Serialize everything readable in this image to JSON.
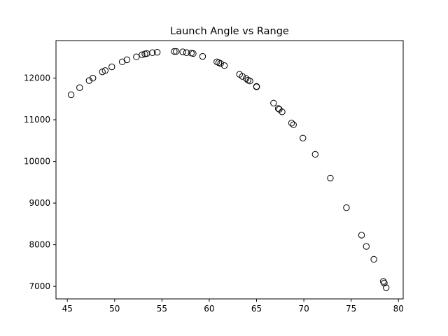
{
  "chart_data": {
    "type": "scatter",
    "title": "Launch Angle vs Range",
    "xlabel": "",
    "ylabel": "",
    "xlim": [
      43.8,
      80.5
    ],
    "ylim": [
      6700,
      12900
    ],
    "x_ticks": [
      45,
      50,
      55,
      60,
      65,
      70,
      75,
      80
    ],
    "y_ticks": [
      7000,
      8000,
      9000,
      10000,
      11000,
      12000
    ],
    "grid": false,
    "legend": "none",
    "marker": "open-circle",
    "marker_color": "#000000",
    "series": [
      {
        "points": [
          [
            45.4,
            11600
          ],
          [
            46.3,
            11770
          ],
          [
            47.3,
            11940
          ],
          [
            47.7,
            12000
          ],
          [
            48.7,
            12150
          ],
          [
            49.0,
            12180
          ],
          [
            49.7,
            12270
          ],
          [
            50.8,
            12390
          ],
          [
            51.3,
            12440
          ],
          [
            52.3,
            12510
          ],
          [
            52.9,
            12560
          ],
          [
            53.2,
            12580
          ],
          [
            53.4,
            12590
          ],
          [
            54.0,
            12610
          ],
          [
            54.5,
            12620
          ],
          [
            56.3,
            12640
          ],
          [
            56.5,
            12640
          ],
          [
            57.2,
            12630
          ],
          [
            57.6,
            12610
          ],
          [
            58.1,
            12600
          ],
          [
            58.3,
            12590
          ],
          [
            59.3,
            12520
          ],
          [
            60.8,
            12390
          ],
          [
            61.0,
            12370
          ],
          [
            61.2,
            12350
          ],
          [
            61.6,
            12300
          ],
          [
            63.2,
            12090
          ],
          [
            63.5,
            12040
          ],
          [
            63.9,
            11990
          ],
          [
            64.1,
            11950
          ],
          [
            64.3,
            11930
          ],
          [
            65.0,
            11800
          ],
          [
            65.0,
            11790
          ],
          [
            66.8,
            11400
          ],
          [
            67.3,
            11270
          ],
          [
            67.4,
            11250
          ],
          [
            67.7,
            11190
          ],
          [
            68.7,
            10920
          ],
          [
            68.9,
            10880
          ],
          [
            69.9,
            10560
          ],
          [
            71.2,
            10170
          ],
          [
            72.8,
            9600
          ],
          [
            74.5,
            8890
          ],
          [
            76.1,
            8230
          ],
          [
            76.6,
            7960
          ],
          [
            77.4,
            7650
          ],
          [
            78.4,
            7120
          ],
          [
            78.5,
            7080
          ],
          [
            78.7,
            6970
          ]
        ]
      }
    ]
  }
}
